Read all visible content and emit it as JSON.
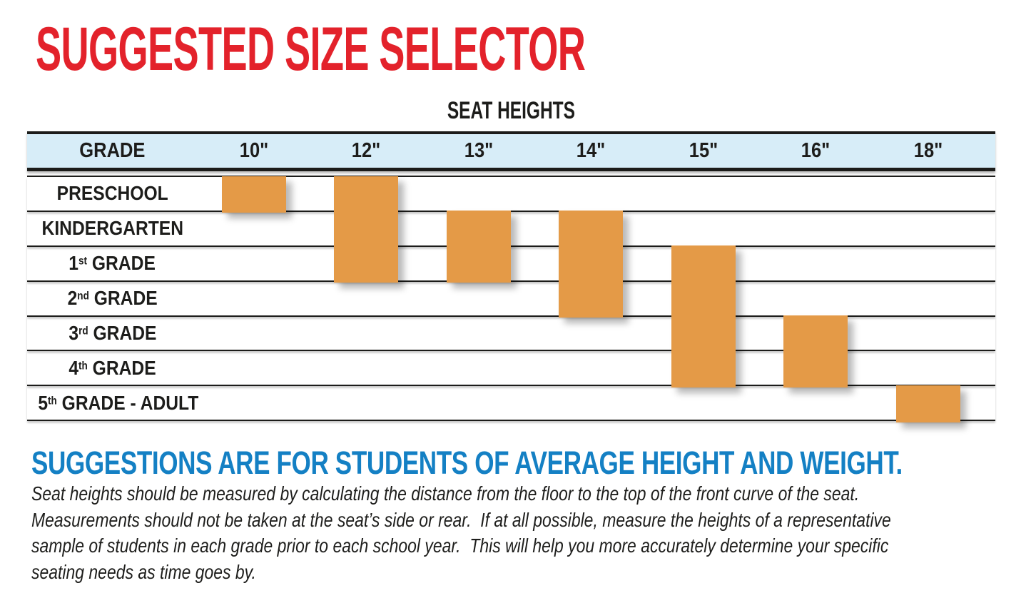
{
  "page": {
    "title": "SUGGESTED SIZE SELECTOR",
    "subtitle": "SUGGESTIONS ARE FOR STUDENTS OF AVERAGE HEIGHT AND WEIGHT.",
    "description_lines": [
      "Seat heights should be measured by calculating the distance from the floor to the top of the front curve of the seat.",
      "Measurements should not be taken at the seat’s side or rear.  If at all possible, measure the heights of a representative",
      "sample of students in each grade prior to each school year.  This will help you more accurately determine your specific",
      "seating needs as time goes by."
    ]
  },
  "table": {
    "section_title": "SEAT HEIGHTS",
    "grade_header": "GRADE",
    "columns": [
      "10\"",
      "12\"",
      "13\"",
      "14\"",
      "15\"",
      "16\"",
      "18\""
    ],
    "grades": [
      {
        "base": "PRESCHOOL",
        "sup": "",
        "tail": ""
      },
      {
        "base": "KINDERGARTEN",
        "sup": "",
        "tail": ""
      },
      {
        "base": "1",
        "sup": "st",
        "tail": " GRADE"
      },
      {
        "base": "2",
        "sup": "nd",
        "tail": " GRADE"
      },
      {
        "base": "3",
        "sup": "rd",
        "tail": " GRADE"
      },
      {
        "base": "4",
        "sup": "th",
        "tail": " GRADE"
      },
      {
        "base": "5",
        "sup": "th",
        "tail": " GRADE - ADULT"
      }
    ]
  },
  "chart_data": {
    "type": "bar",
    "subtype": "grade-range selector (gantt-style vertical range bars)",
    "title": "SEAT HEIGHTS",
    "categories": [
      "PRESCHOOL",
      "KINDERGARTEN",
      "1st GRADE",
      "2nd GRADE",
      "3rd GRADE",
      "4th GRADE",
      "5th GRADE - ADULT"
    ],
    "columns": [
      "10\"",
      "12\"",
      "13\"",
      "14\"",
      "15\"",
      "16\"",
      "18\""
    ],
    "bars": [
      {
        "seat_height": "10\"",
        "grade_start": "PRESCHOOL",
        "grade_end": "PRESCHOOL",
        "row_start": 0,
        "row_end": 0
      },
      {
        "seat_height": "12\"",
        "grade_start": "PRESCHOOL",
        "grade_end": "1st GRADE",
        "row_start": 0,
        "row_end": 2
      },
      {
        "seat_height": "13\"",
        "grade_start": "KINDERGARTEN",
        "grade_end": "1st GRADE",
        "row_start": 1,
        "row_end": 2
      },
      {
        "seat_height": "14\"",
        "grade_start": "KINDERGARTEN",
        "grade_end": "2nd GRADE",
        "row_start": 1,
        "row_end": 3
      },
      {
        "seat_height": "15\"",
        "grade_start": "1st GRADE",
        "grade_end": "4th GRADE",
        "row_start": 2,
        "row_end": 5
      },
      {
        "seat_height": "16\"",
        "grade_start": "3rd GRADE",
        "grade_end": "4th GRADE",
        "row_start": 4,
        "row_end": 5
      },
      {
        "seat_height": "18\"",
        "grade_start": "5th GRADE - ADULT",
        "grade_end": "5th GRADE - ADULT",
        "row_start": 6,
        "row_end": 6
      }
    ],
    "grid": "horizontal row lines only",
    "legend": "none",
    "colors": {
      "bar": "#E49A47",
      "header_bg": "#D7EDF8",
      "title_red": "#E3222B",
      "subtitle_blue": "#1480C4",
      "line": "#1C1C1A",
      "ink": "#1D1D1B"
    }
  }
}
